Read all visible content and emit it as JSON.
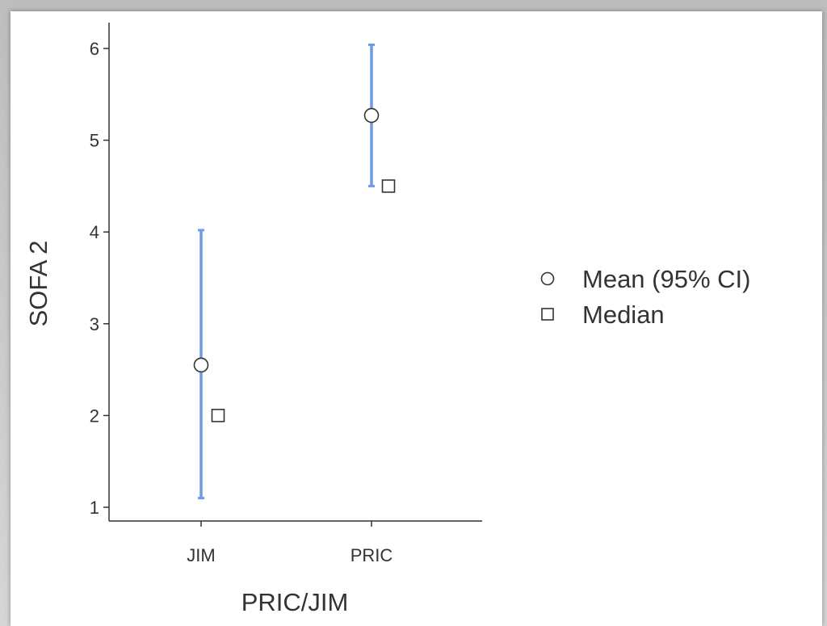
{
  "chart_data": {
    "type": "scatter",
    "xlabel": "PRIC/JIM",
    "ylabel": "SOFA 2",
    "categories": [
      "JIM",
      "PRIC"
    ],
    "ylim": [
      0.8,
      6.25
    ],
    "yticks": [
      "1",
      "2",
      "3",
      "4",
      "5",
      "6"
    ],
    "grid": false,
    "legend_position": "right",
    "series": [
      {
        "name": "Mean (95% CI)",
        "marker": "circle",
        "values": [
          2.55,
          5.27
        ],
        "ci_low": [
          1.1,
          4.5
        ],
        "ci_high": [
          4.02,
          6.04
        ]
      },
      {
        "name": "Median",
        "marker": "square",
        "values": [
          2.0,
          4.5
        ]
      }
    ],
    "colors": {
      "errorbar": "#6f9be6",
      "axis": "#333333",
      "marker_edge": "#333333",
      "marker_fill": "#ffffff"
    }
  }
}
